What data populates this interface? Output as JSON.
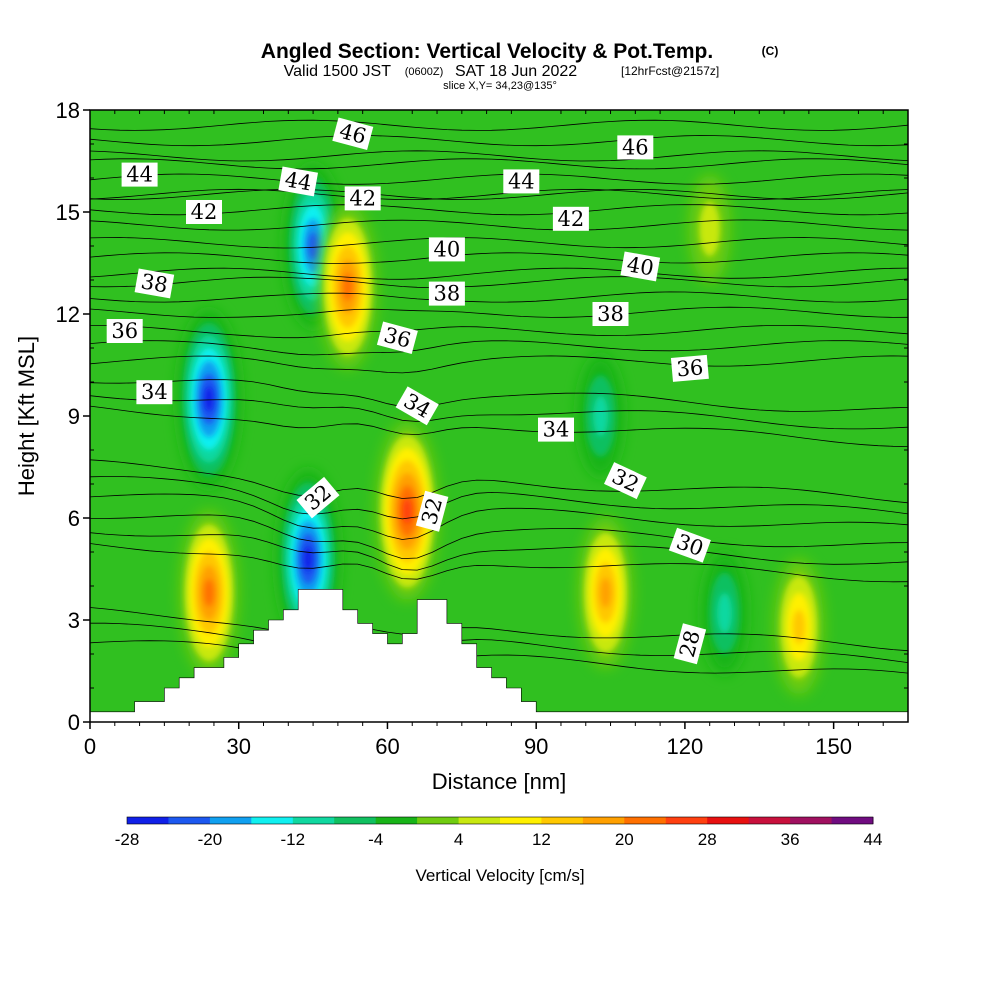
{
  "title": {
    "main": "Angled Section: Vertical Velocity & Pot.Temp.",
    "copyright": "(C)",
    "valid_a": "Valid 1500 JST",
    "valid_utc": "(0600Z)",
    "valid_b": "SAT 18 Jun 2022",
    "forecast": "[12hrFcst@2157z]",
    "slice": "slice X,Y= 34,23@135°"
  },
  "chart_data": {
    "type": "heatmap",
    "xlabel": "Distance [nm]",
    "ylabel": "Height [Kft MSL]",
    "xlim": [
      0,
      165
    ],
    "ylim": [
      0,
      18
    ],
    "x_ticks": [
      "0",
      "30",
      "60",
      "90",
      "120",
      "150"
    ],
    "y_ticks": [
      "0",
      "3",
      "6",
      "9",
      "12",
      "15",
      "18"
    ],
    "colorbar": {
      "label": "Vertical Velocity [cm/s]",
      "ticks": [
        "-28",
        "-20",
        "-12",
        "-4",
        "4",
        "12",
        "20",
        "28",
        "36",
        "44"
      ],
      "levels": [
        -28,
        -24,
        -20,
        -16,
        -12,
        -8,
        -4,
        0,
        4,
        8,
        12,
        16,
        20,
        24,
        28,
        32,
        36,
        40,
        44
      ],
      "colors": [
        "#1020e8",
        "#1c58f0",
        "#10a0f0",
        "#10f0f0",
        "#10d8a0",
        "#10c060",
        "#18b418",
        "#70cc10",
        "#c8e810",
        "#fff000",
        "#ffc800",
        "#ffa000",
        "#ff7000",
        "#ff4010",
        "#e81010",
        "#c8103c",
        "#a01060",
        "#700c80"
      ],
      "background": "#30c020"
    },
    "velocity_features": [
      {
        "x": 24,
        "y": 9.5,
        "value": -26
      },
      {
        "x": 44,
        "y": 4.8,
        "value": -28
      },
      {
        "x": 45,
        "y": 14.0,
        "value": -22
      },
      {
        "x": 24,
        "y": 3.8,
        "value": 24
      },
      {
        "x": 64,
        "y": 6.2,
        "value": 28
      },
      {
        "x": 52,
        "y": 12.8,
        "value": 24
      },
      {
        "x": 104,
        "y": 3.8,
        "value": 20
      },
      {
        "x": 143,
        "y": 2.8,
        "value": 14
      },
      {
        "x": 103,
        "y": 9.0,
        "value": -12
      },
      {
        "x": 128,
        "y": 3.2,
        "value": -10
      },
      {
        "x": 125,
        "y": 14.5,
        "value": 6
      }
    ],
    "terrain": [
      [
        0,
        0.3
      ],
      [
        9,
        0.3
      ],
      [
        9,
        0.6
      ],
      [
        15,
        0.6
      ],
      [
        15,
        1.0
      ],
      [
        18,
        1.0
      ],
      [
        18,
        1.3
      ],
      [
        21,
        1.3
      ],
      [
        21,
        1.6
      ],
      [
        27,
        1.6
      ],
      [
        27,
        1.9
      ],
      [
        30,
        1.9
      ],
      [
        30,
        2.3
      ],
      [
        33,
        2.3
      ],
      [
        33,
        2.7
      ],
      [
        36,
        2.7
      ],
      [
        36,
        3.0
      ],
      [
        39,
        3.0
      ],
      [
        39,
        3.3
      ],
      [
        42,
        3.3
      ],
      [
        42,
        3.9
      ],
      [
        51,
        3.9
      ],
      [
        51,
        3.3
      ],
      [
        54,
        3.3
      ],
      [
        54,
        2.9
      ],
      [
        57,
        2.9
      ],
      [
        57,
        2.6
      ],
      [
        60,
        2.6
      ],
      [
        60,
        2.3
      ],
      [
        63,
        2.3
      ],
      [
        63,
        2.6
      ],
      [
        66,
        2.6
      ],
      [
        66,
        3.6
      ],
      [
        72,
        3.6
      ],
      [
        72,
        2.9
      ],
      [
        75,
        2.9
      ],
      [
        75,
        2.3
      ],
      [
        78,
        2.3
      ],
      [
        78,
        1.6
      ],
      [
        81,
        1.6
      ],
      [
        81,
        1.3
      ],
      [
        84,
        1.3
      ],
      [
        84,
        1.0
      ],
      [
        87,
        1.0
      ],
      [
        87,
        0.6
      ],
      [
        90,
        0.6
      ],
      [
        90,
        0.3
      ],
      [
        165,
        0.3
      ]
    ],
    "theta_contours": [
      {
        "value": "28",
        "labels": [
          [
            121,
            2.3,
            -75
          ]
        ]
      },
      {
        "value": "30",
        "labels": [
          [
            121,
            5.2,
            20
          ]
        ]
      },
      {
        "value": "32",
        "labels": [
          [
            46,
            6.6,
            -40
          ],
          [
            69,
            6.2,
            -75
          ],
          [
            108,
            7.1,
            25
          ]
        ]
      },
      {
        "value": "34",
        "labels": [
          [
            13,
            9.7,
            0
          ],
          [
            66,
            9.3,
            30
          ],
          [
            94,
            8.6,
            0
          ]
        ]
      },
      {
        "value": "36",
        "labels": [
          [
            7,
            11.5,
            0
          ],
          [
            62,
            11.3,
            15
          ],
          [
            121,
            10.4,
            -5
          ]
        ]
      },
      {
        "value": "38",
        "labels": [
          [
            13,
            12.9,
            10
          ],
          [
            72,
            12.6,
            0
          ],
          [
            105,
            12.0,
            0
          ]
        ]
      },
      {
        "value": "40",
        "labels": [
          [
            72,
            13.9,
            0
          ],
          [
            111,
            13.4,
            10
          ]
        ]
      },
      {
        "value": "42",
        "labels": [
          [
            23,
            15.0,
            0
          ],
          [
            55,
            15.4,
            0
          ],
          [
            97,
            14.8,
            0
          ]
        ]
      },
      {
        "value": "44",
        "labels": [
          [
            10,
            16.1,
            0
          ],
          [
            42,
            15.9,
            10
          ],
          [
            87,
            15.9,
            0
          ]
        ]
      },
      {
        "value": "46",
        "labels": [
          [
            53,
            17.3,
            15
          ],
          [
            110,
            16.9,
            0
          ]
        ]
      }
    ],
    "grid": false
  }
}
